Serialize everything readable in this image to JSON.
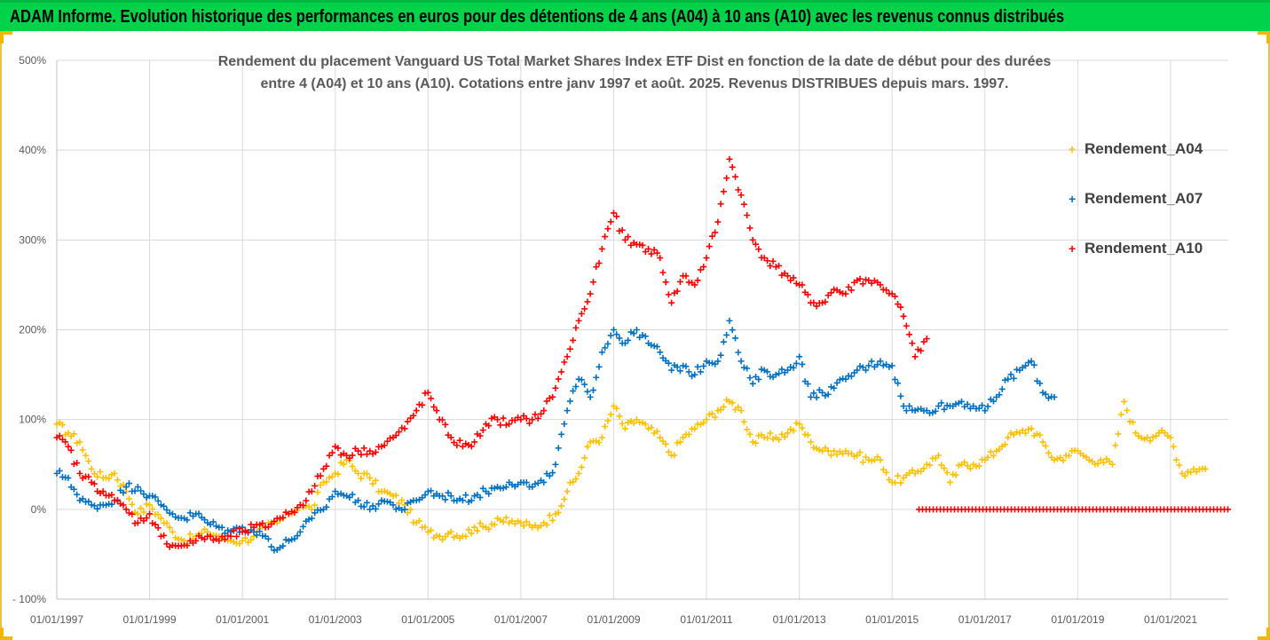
{
  "banner": {
    "title": "ADAM Informe. Evolution historique des performances en euros pour des détentions de 4 ans (A04) à 10 ans (A10) avec les revenus connus distribués"
  },
  "chart_data": {
    "type": "scatter",
    "title_lines": [
      "Rendement du placement Vanguard US Total Market Shares Index ETF Dist en fonction de la date de début pour des durées",
      "entre 4 (A04) et 10 ans (A10). Cotations entre janv 1997 et août. 2025. Revenus DISTRIBUES depuis mars. 1997."
    ],
    "xlabel": "",
    "ylabel": "",
    "x_tick_labels": [
      "01/01/1997",
      "01/01/1999",
      "01/01/2001",
      "01/01/2003",
      "01/01/2005",
      "01/01/2007",
      "01/01/2009",
      "01/01/2011",
      "01/01/2013",
      "01/01/2015",
      "01/01/2017",
      "01/01/2019",
      "01/01/2021"
    ],
    "y_tick_labels": [
      "- 100%",
      "0%",
      "100%",
      "200%",
      "300%",
      "400%",
      "500%"
    ],
    "ylim": [
      -100,
      500
    ],
    "xlim": [
      "1997-01-01",
      "2022-03-31"
    ],
    "grid": true,
    "legend_position": "right",
    "marker": "+",
    "series": [
      {
        "name": "Rendement_A04",
        "color": "#ffc000",
        "points": [
          [
            "1997-01-01",
            95
          ],
          [
            "1997-04-01",
            85
          ],
          [
            "1997-07-01",
            75
          ],
          [
            "1997-10-01",
            45
          ],
          [
            "1998-01-01",
            35
          ],
          [
            "1998-04-01",
            40
          ],
          [
            "1998-07-01",
            20
          ],
          [
            "1998-10-01",
            -5
          ],
          [
            "1999-01-01",
            5
          ],
          [
            "1999-04-01",
            -10
          ],
          [
            "1999-07-01",
            -25
          ],
          [
            "1999-10-01",
            -35
          ],
          [
            "2000-01-01",
            -30
          ],
          [
            "2000-04-01",
            -25
          ],
          [
            "2000-07-01",
            -30
          ],
          [
            "2000-10-01",
            -35
          ],
          [
            "2001-01-01",
            -35
          ],
          [
            "2001-04-01",
            -30
          ],
          [
            "2001-07-01",
            -20
          ],
          [
            "2001-10-01",
            -15
          ],
          [
            "2002-01-01",
            -5
          ],
          [
            "2002-04-01",
            5
          ],
          [
            "2002-07-01",
            0
          ],
          [
            "2002-10-01",
            30
          ],
          [
            "2003-01-01",
            40
          ],
          [
            "2003-04-01",
            55
          ],
          [
            "2003-07-01",
            40
          ],
          [
            "2003-10-01",
            35
          ],
          [
            "2004-01-01",
            20
          ],
          [
            "2004-04-01",
            15
          ],
          [
            "2004-07-01",
            5
          ],
          [
            "2004-10-01",
            -15
          ],
          [
            "2005-01-01",
            -25
          ],
          [
            "2005-04-01",
            -30
          ],
          [
            "2005-07-01",
            -25
          ],
          [
            "2005-10-01",
            -30
          ],
          [
            "2006-01-01",
            -20
          ],
          [
            "2006-04-01",
            -20
          ],
          [
            "2006-07-01",
            -10
          ],
          [
            "2006-10-01",
            -15
          ],
          [
            "2007-01-01",
            -15
          ],
          [
            "2007-04-01",
            -20
          ],
          [
            "2007-07-01",
            -15
          ],
          [
            "2007-10-01",
            -5
          ],
          [
            "2008-01-01",
            20
          ],
          [
            "2008-04-01",
            40
          ],
          [
            "2008-07-01",
            75
          ],
          [
            "2008-10-01",
            80
          ],
          [
            "2009-01-01",
            115
          ],
          [
            "2009-04-01",
            90
          ],
          [
            "2009-07-01",
            100
          ],
          [
            "2009-10-01",
            90
          ],
          [
            "2010-01-01",
            80
          ],
          [
            "2010-04-01",
            60
          ],
          [
            "2010-07-01",
            80
          ],
          [
            "2010-10-01",
            90
          ],
          [
            "2011-01-01",
            100
          ],
          [
            "2011-04-01",
            110
          ],
          [
            "2011-07-01",
            120
          ],
          [
            "2011-10-01",
            110
          ],
          [
            "2012-01-01",
            75
          ],
          [
            "2012-04-01",
            80
          ],
          [
            "2012-07-01",
            80
          ],
          [
            "2012-10-01",
            85
          ],
          [
            "2013-01-01",
            95
          ],
          [
            "2013-04-01",
            75
          ],
          [
            "2013-07-01",
            65
          ],
          [
            "2013-10-01",
            65
          ],
          [
            "2014-01-01",
            65
          ],
          [
            "2014-04-01",
            60
          ],
          [
            "2014-07-01",
            55
          ],
          [
            "2014-10-01",
            55
          ],
          [
            "2015-01-01",
            30
          ],
          [
            "2015-04-01",
            35
          ],
          [
            "2015-07-01",
            40
          ],
          [
            "2015-10-01",
            50
          ],
          [
            "2016-01-01",
            60
          ],
          [
            "2016-04-01",
            30
          ],
          [
            "2016-07-01",
            50
          ],
          [
            "2016-10-01",
            50
          ],
          [
            "2017-01-01",
            55
          ],
          [
            "2017-04-01",
            65
          ],
          [
            "2017-07-01",
            80
          ],
          [
            "2017-10-01",
            85
          ],
          [
            "2018-01-01",
            90
          ],
          [
            "2018-04-01",
            75
          ],
          [
            "2018-07-01",
            55
          ],
          [
            "2018-10-01",
            60
          ],
          [
            "2019-01-01",
            65
          ],
          [
            "2019-04-01",
            55
          ],
          [
            "2019-07-01",
            55
          ],
          [
            "2019-10-01",
            50
          ],
          [
            "2020-01-01",
            120
          ],
          [
            "2020-04-01",
            85
          ],
          [
            "2020-07-01",
            80
          ],
          [
            "2020-10-01",
            85
          ],
          [
            "2021-01-01",
            80
          ],
          [
            "2021-04-01",
            40
          ],
          [
            "2021-07-01",
            45
          ],
          [
            "2021-10-01",
            45
          ]
        ]
      },
      {
        "name": "Rendement_A07",
        "color": "#0070c0",
        "points": [
          [
            "1997-01-01",
            40
          ],
          [
            "1997-04-01",
            35
          ],
          [
            "1997-07-01",
            10
          ],
          [
            "1997-10-01",
            5
          ],
          [
            "1998-01-01",
            5
          ],
          [
            "1998-04-01",
            10
          ],
          [
            "1998-07-01",
            25
          ],
          [
            "1998-10-01",
            25
          ],
          [
            "1999-01-01",
            15
          ],
          [
            "1999-04-01",
            5
          ],
          [
            "1999-07-01",
            -5
          ],
          [
            "1999-10-01",
            -10
          ],
          [
            "2000-01-01",
            -5
          ],
          [
            "2000-04-01",
            -15
          ],
          [
            "2000-07-01",
            -20
          ],
          [
            "2000-10-01",
            -25
          ],
          [
            "2001-01-01",
            -20
          ],
          [
            "2001-04-01",
            -25
          ],
          [
            "2001-07-01",
            -30
          ],
          [
            "2001-10-01",
            -45
          ],
          [
            "2002-01-01",
            -35
          ],
          [
            "2002-04-01",
            -25
          ],
          [
            "2002-07-01",
            -10
          ],
          [
            "2002-10-01",
            0
          ],
          [
            "2003-01-01",
            20
          ],
          [
            "2003-04-01",
            15
          ],
          [
            "2003-07-01",
            10
          ],
          [
            "2003-10-01",
            0
          ],
          [
            "2004-01-01",
            10
          ],
          [
            "2004-04-01",
            5
          ],
          [
            "2004-07-01",
            0
          ],
          [
            "2004-10-01",
            10
          ],
          [
            "2005-01-01",
            20
          ],
          [
            "2005-04-01",
            15
          ],
          [
            "2005-07-01",
            15
          ],
          [
            "2005-10-01",
            10
          ],
          [
            "2006-01-01",
            15
          ],
          [
            "2006-04-01",
            20
          ],
          [
            "2006-07-01",
            25
          ],
          [
            "2006-10-01",
            30
          ],
          [
            "2007-01-01",
            30
          ],
          [
            "2007-04-01",
            25
          ],
          [
            "2007-07-01",
            30
          ],
          [
            "2007-10-01",
            50
          ],
          [
            "2008-01-01",
            110
          ],
          [
            "2008-04-01",
            145
          ],
          [
            "2008-07-01",
            125
          ],
          [
            "2008-10-01",
            175
          ],
          [
            "2009-01-01",
            200
          ],
          [
            "2009-04-01",
            185
          ],
          [
            "2009-07-01",
            200
          ],
          [
            "2009-10-01",
            185
          ],
          [
            "2010-01-01",
            175
          ],
          [
            "2010-04-01",
            155
          ],
          [
            "2010-07-01",
            160
          ],
          [
            "2010-10-01",
            150
          ],
          [
            "2011-01-01",
            165
          ],
          [
            "2011-04-01",
            165
          ],
          [
            "2011-07-01",
            210
          ],
          [
            "2011-10-01",
            165
          ],
          [
            "2012-01-01",
            140
          ],
          [
            "2012-04-01",
            155
          ],
          [
            "2012-07-01",
            150
          ],
          [
            "2012-10-01",
            155
          ],
          [
            "2013-01-01",
            170
          ],
          [
            "2013-04-01",
            125
          ],
          [
            "2013-07-01",
            130
          ],
          [
            "2013-10-01",
            135
          ],
          [
            "2014-01-01",
            145
          ],
          [
            "2014-04-01",
            155
          ],
          [
            "2014-07-01",
            160
          ],
          [
            "2014-10-01",
            165
          ],
          [
            "2015-01-01",
            160
          ],
          [
            "2015-04-01",
            115
          ],
          [
            "2015-07-01",
            110
          ],
          [
            "2015-10-01",
            110
          ],
          [
            "2016-01-01",
            115
          ],
          [
            "2016-04-01",
            115
          ],
          [
            "2016-07-01",
            120
          ],
          [
            "2016-10-01",
            115
          ],
          [
            "2017-01-01",
            110
          ],
          [
            "2017-04-01",
            125
          ],
          [
            "2017-07-01",
            145
          ],
          [
            "2017-10-01",
            155
          ],
          [
            "2018-01-01",
            165
          ],
          [
            "2018-04-01",
            130
          ],
          [
            "2018-07-01",
            125
          ]
        ]
      },
      {
        "name": "Rendement_A10",
        "color": "#ff0000",
        "points": [
          [
            "1997-01-01",
            80
          ],
          [
            "1997-04-01",
            70
          ],
          [
            "1997-07-01",
            40
          ],
          [
            "1997-10-01",
            30
          ],
          [
            "1998-01-01",
            20
          ],
          [
            "1998-04-01",
            10
          ],
          [
            "1998-07-01",
            0
          ],
          [
            "1998-10-01",
            -15
          ],
          [
            "1999-01-01",
            -5
          ],
          [
            "1999-04-01",
            -30
          ],
          [
            "1999-07-01",
            -40
          ],
          [
            "1999-10-01",
            -40
          ],
          [
            "2000-01-01",
            -35
          ],
          [
            "2000-04-01",
            -30
          ],
          [
            "2000-07-01",
            -35
          ],
          [
            "2000-10-01",
            -30
          ],
          [
            "2001-01-01",
            -25
          ],
          [
            "2001-04-01",
            -20
          ],
          [
            "2001-07-01",
            -20
          ],
          [
            "2001-10-01",
            -10
          ],
          [
            "2002-01-01",
            -5
          ],
          [
            "2002-04-01",
            5
          ],
          [
            "2002-07-01",
            20
          ],
          [
            "2002-10-01",
            45
          ],
          [
            "2003-01-01",
            70
          ],
          [
            "2003-04-01",
            60
          ],
          [
            "2003-07-01",
            65
          ],
          [
            "2003-10-01",
            65
          ],
          [
            "2004-01-01",
            70
          ],
          [
            "2004-04-01",
            80
          ],
          [
            "2004-07-01",
            90
          ],
          [
            "2004-10-01",
            110
          ],
          [
            "2005-01-01",
            130
          ],
          [
            "2005-04-01",
            100
          ],
          [
            "2005-07-01",
            80
          ],
          [
            "2005-10-01",
            70
          ],
          [
            "2006-01-01",
            75
          ],
          [
            "2006-04-01",
            95
          ],
          [
            "2006-07-01",
            100
          ],
          [
            "2006-10-01",
            95
          ],
          [
            "2007-01-01",
            100
          ],
          [
            "2007-04-01",
            100
          ],
          [
            "2007-07-01",
            110
          ],
          [
            "2007-10-01",
            135
          ],
          [
            "2008-01-01",
            170
          ],
          [
            "2008-04-01",
            210
          ],
          [
            "2008-07-01",
            240
          ],
          [
            "2008-10-01",
            290
          ],
          [
            "2009-01-01",
            330
          ],
          [
            "2009-04-01",
            300
          ],
          [
            "2009-07-01",
            295
          ],
          [
            "2009-10-01",
            290
          ],
          [
            "2010-01-01",
            280
          ],
          [
            "2010-04-01",
            230
          ],
          [
            "2010-07-01",
            260
          ],
          [
            "2010-10-01",
            250
          ],
          [
            "2011-01-01",
            280
          ],
          [
            "2011-04-01",
            320
          ],
          [
            "2011-07-01",
            390
          ],
          [
            "2011-10-01",
            350
          ],
          [
            "2012-01-01",
            300
          ],
          [
            "2012-04-01",
            280
          ],
          [
            "2012-07-01",
            270
          ],
          [
            "2012-10-01",
            260
          ],
          [
            "2013-01-01",
            250
          ],
          [
            "2013-04-01",
            230
          ],
          [
            "2013-07-01",
            230
          ],
          [
            "2013-10-01",
            245
          ],
          [
            "2014-01-01",
            240
          ],
          [
            "2014-04-01",
            255
          ],
          [
            "2014-07-01",
            255
          ],
          [
            "2014-10-01",
            250
          ],
          [
            "2015-01-01",
            240
          ],
          [
            "2015-04-01",
            215
          ],
          [
            "2015-07-01",
            170
          ],
          [
            "2015-10-01",
            190
          ]
        ],
        "zero_segment": {
          "from": "2015-08-01",
          "to": "2022-03-31",
          "value": 0
        }
      }
    ]
  }
}
